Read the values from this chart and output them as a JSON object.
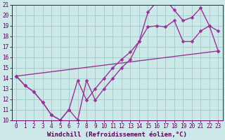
{
  "xlabel": "Windchill (Refroidissement éolien,°C)",
  "xlim": [
    -0.5,
    23.5
  ],
  "ylim": [
    10,
    21
  ],
  "yticks": [
    10,
    11,
    12,
    13,
    14,
    15,
    16,
    17,
    18,
    19,
    20,
    21
  ],
  "xticks": [
    0,
    1,
    2,
    3,
    4,
    5,
    6,
    7,
    8,
    9,
    10,
    11,
    12,
    13,
    14,
    15,
    16,
    17,
    18,
    19,
    20,
    21,
    22,
    23
  ],
  "bg_color": "#cde8e8",
  "grid_color": "#a0c8c8",
  "line_color": "#993399",
  "line1_x": [
    0,
    1,
    2,
    3,
    4,
    5,
    6,
    7,
    8,
    9,
    10,
    11,
    12,
    13,
    14,
    15,
    16,
    17,
    18,
    19,
    20,
    21,
    22,
    23
  ],
  "line1_y": [
    14.2,
    13.3,
    12.7,
    11.7,
    10.5,
    10.0,
    11.0,
    10.0,
    13.8,
    11.9,
    13.0,
    14.0,
    15.0,
    15.8,
    17.5,
    18.9,
    19.0,
    18.9,
    19.5,
    17.5,
    17.5,
    18.5,
    19.0,
    16.6
  ],
  "line2_x": [
    0,
    1,
    2,
    3,
    4,
    5,
    6,
    7,
    8,
    9,
    10,
    11,
    12,
    13,
    14,
    15,
    16,
    17,
    18,
    19,
    20,
    21,
    22,
    23
  ],
  "line2_y": [
    14.2,
    13.3,
    12.7,
    11.7,
    10.5,
    10.0,
    11.0,
    13.8,
    11.9,
    13.0,
    14.0,
    15.0,
    15.8,
    16.5,
    17.5,
    20.3,
    21.3,
    21.5,
    20.5,
    19.5,
    19.8,
    20.7,
    19.0,
    18.5
  ],
  "line3_x": [
    0,
    23
  ],
  "line3_y": [
    14.2,
    16.6
  ],
  "marker": "D",
  "marker_size": 2.5,
  "line_width": 1.0,
  "tick_fontsize": 5.5,
  "xlabel_fontsize": 6.5
}
